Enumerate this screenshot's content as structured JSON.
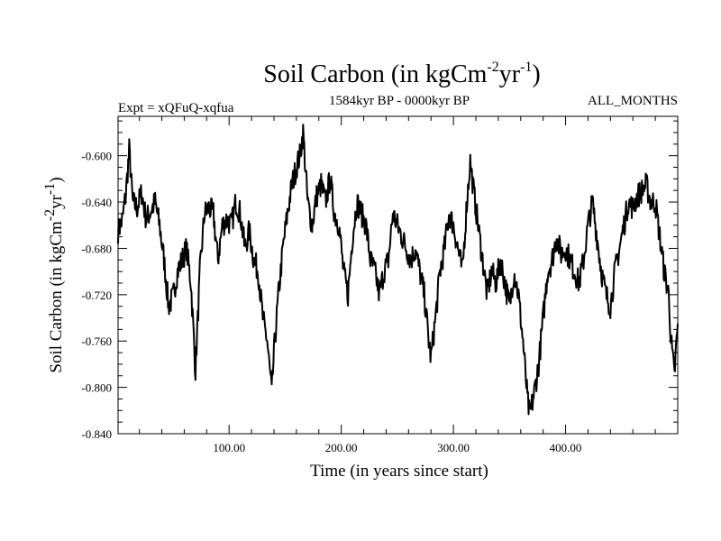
{
  "chart_data": {
    "type": "line",
    "title_main": "Soil Carbon (in kgCm",
    "title_sup1": "-2",
    "title_mid": "yr",
    "title_sup2": "-1",
    "title_end": ")",
    "left_header": "Expt = xQFuQ-xqfua",
    "center_header": "1584kyr BP - 0000kyr BP",
    "right_header": "ALL_MONTHS",
    "xlabel": "Time (in years since start)",
    "ylabel_main": "Soil Carbon (in kgCm",
    "ylabel_sup1": "-2",
    "ylabel_mid": "yr",
    "ylabel_sup2": "-1",
    "ylabel_end": ")",
    "xlim": [
      1,
      500
    ],
    "ylim": [
      -0.84,
      -0.566
    ],
    "x_ticks": [
      100,
      200,
      300,
      400
    ],
    "x_tick_labels": [
      "100.00",
      "200.00",
      "300.00",
      "400.00"
    ],
    "y_ticks": [
      -0.84,
      -0.8,
      -0.76,
      -0.72,
      -0.68,
      -0.64,
      -0.6
    ],
    "y_tick_labels": [
      "-0.840",
      "-0.800",
      "-0.760",
      "-0.720",
      "-0.680",
      "-0.640",
      "-0.600"
    ],
    "grid": false,
    "line_color": "#000000",
    "series": [
      {
        "x": [
          1,
          5,
          8,
          11,
          14,
          18,
          22,
          26,
          30,
          34,
          38,
          42,
          46,
          50,
          54,
          58,
          62,
          66,
          70,
          74,
          78,
          82,
          86,
          90,
          94,
          98,
          102,
          106,
          110,
          114,
          118,
          122,
          126,
          130,
          134,
          138,
          140,
          144,
          148,
          152,
          156,
          160,
          163,
          166,
          170,
          174,
          178,
          182,
          186,
          190,
          194,
          198,
          202,
          206,
          210,
          214,
          218,
          222,
          226,
          230,
          234,
          238,
          242,
          246,
          250,
          254,
          258,
          262,
          266,
          270,
          274,
          278,
          280,
          284,
          288,
          292,
          296,
          300,
          304,
          308,
          312,
          315,
          318,
          322,
          326,
          330,
          334,
          338,
          342,
          346,
          350,
          354,
          358,
          362,
          366,
          368,
          372,
          376,
          380,
          384,
          388,
          392,
          396,
          400,
          404,
          408,
          412,
          416,
          420,
          424,
          428,
          432,
          436,
          440,
          444,
          448,
          452,
          456,
          460,
          464,
          468,
          472,
          476,
          480,
          484,
          488,
          492,
          494,
          497,
          500
        ],
        "y": [
          -0.665,
          -0.655,
          -0.632,
          -0.595,
          -0.64,
          -0.645,
          -0.632,
          -0.655,
          -0.648,
          -0.64,
          -0.66,
          -0.69,
          -0.73,
          -0.722,
          -0.7,
          -0.69,
          -0.68,
          -0.71,
          -0.785,
          -0.7,
          -0.65,
          -0.645,
          -0.65,
          -0.69,
          -0.66,
          -0.655,
          -0.66,
          -0.64,
          -0.65,
          -0.68,
          -0.665,
          -0.69,
          -0.7,
          -0.74,
          -0.76,
          -0.805,
          -0.77,
          -0.72,
          -0.68,
          -0.65,
          -0.625,
          -0.61,
          -0.6,
          -0.58,
          -0.64,
          -0.66,
          -0.635,
          -0.625,
          -0.64,
          -0.62,
          -0.65,
          -0.66,
          -0.7,
          -0.72,
          -0.67,
          -0.64,
          -0.65,
          -0.66,
          -0.69,
          -0.7,
          -0.72,
          -0.7,
          -0.69,
          -0.65,
          -0.66,
          -0.67,
          -0.68,
          -0.69,
          -0.68,
          -0.7,
          -0.72,
          -0.76,
          -0.775,
          -0.74,
          -0.7,
          -0.68,
          -0.65,
          -0.66,
          -0.68,
          -0.7,
          -0.64,
          -0.605,
          -0.63,
          -0.66,
          -0.69,
          -0.72,
          -0.7,
          -0.71,
          -0.69,
          -0.71,
          -0.73,
          -0.7,
          -0.72,
          -0.76,
          -0.81,
          -0.825,
          -0.805,
          -0.78,
          -0.74,
          -0.7,
          -0.69,
          -0.67,
          -0.685,
          -0.68,
          -0.69,
          -0.7,
          -0.71,
          -0.69,
          -0.66,
          -0.64,
          -0.67,
          -0.7,
          -0.72,
          -0.73,
          -0.7,
          -0.68,
          -0.66,
          -0.64,
          -0.645,
          -0.635,
          -0.63,
          -0.625,
          -0.64,
          -0.64,
          -0.67,
          -0.7,
          -0.72,
          -0.76,
          -0.79,
          -0.745
        ]
      }
    ]
  }
}
